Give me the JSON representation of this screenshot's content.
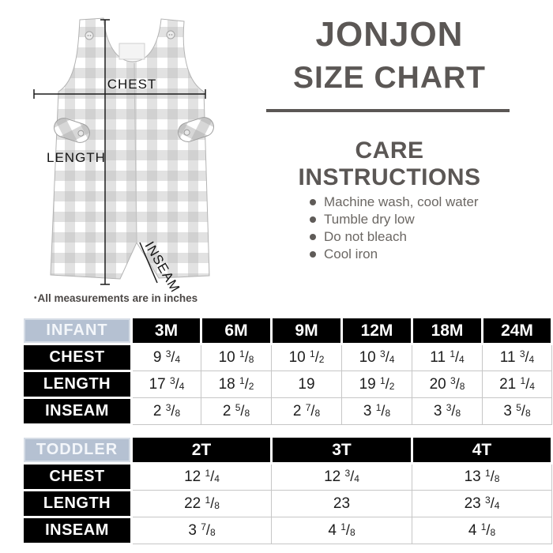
{
  "title": {
    "line1": "JONJON",
    "line2": "SIZE CHART"
  },
  "care": {
    "heading": "CARE INSTRUCTIONS",
    "items": [
      "Machine wash, cool water",
      "Tumble dry low",
      "Do not bleach",
      "Cool iron"
    ]
  },
  "note": {
    "bullet": "•",
    "text": "All measurements are in inches"
  },
  "illustration": {
    "labels": {
      "chest": "CHEST",
      "length": "LENGTH",
      "inseam": "INSEAM"
    }
  },
  "colors": {
    "title_gray": "#5b5755",
    "care_text_gray": "#6b6763",
    "group_header_blue": "#b5c1d2",
    "table_black": "#000000",
    "gingham_gray": "#bdbdbd"
  },
  "size_tables": [
    {
      "group": "INFANT",
      "columns": [
        "3M",
        "6M",
        "9M",
        "12M",
        "18M",
        "24M"
      ],
      "rows": [
        {
          "label": "CHEST",
          "values": [
            "9 3/4",
            "10 1/8",
            "10 1/2",
            "10 3/4",
            "11 1/4",
            "11 3/4"
          ]
        },
        {
          "label": "LENGTH",
          "values": [
            "17 3/4",
            "18 1/2",
            "19",
            "19 1/2",
            "20 3/8",
            "21 1/4"
          ]
        },
        {
          "label": "INSEAM",
          "values": [
            "2 3/8",
            "2 5/8",
            "2 7/8",
            "3 1/8",
            "3 3/8",
            "3 5/8"
          ]
        }
      ]
    },
    {
      "group": "TODDLER",
      "columns": [
        "2T",
        "3T",
        "4T"
      ],
      "rows": [
        {
          "label": "CHEST",
          "values": [
            "12 1/4",
            "12 3/4",
            "13 1/8"
          ]
        },
        {
          "label": "LENGTH",
          "values": [
            "22 1/8",
            "23",
            "23 3/4"
          ]
        },
        {
          "label": "INSEAM",
          "values": [
            "3 7/8",
            "4 1/8",
            "4 1/8"
          ]
        }
      ]
    }
  ]
}
